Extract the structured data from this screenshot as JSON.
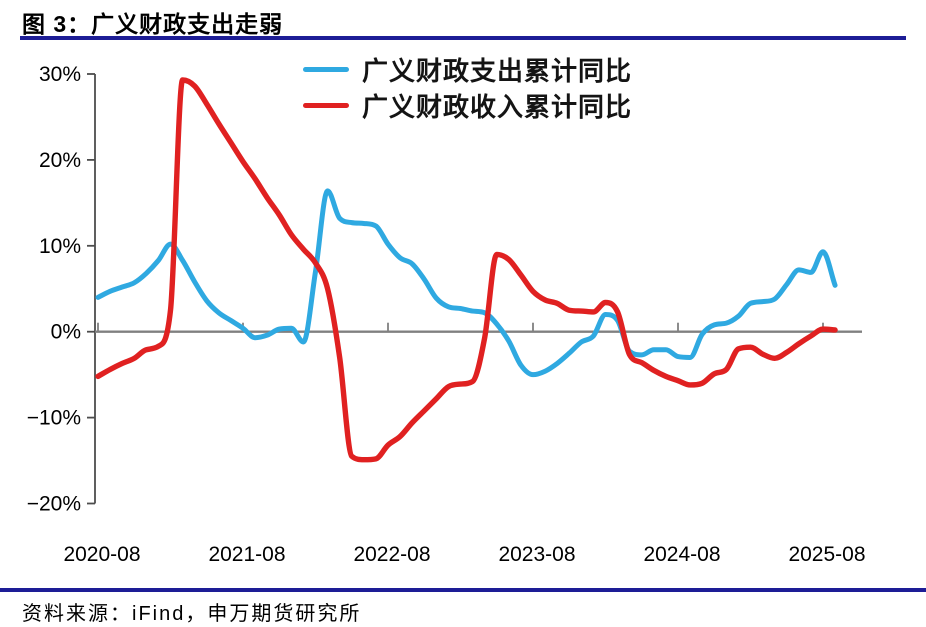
{
  "header": {
    "title": "图 3：广义财政支出走弱"
  },
  "footer": {
    "source": "资料来源：iFind，申万期货研究所"
  },
  "colors": {
    "accent_rule": "#1d1d96",
    "axis": "#4d4d4d",
    "zero_line": "#808080",
    "expenditure_line": "#2FA9E1",
    "revenue_line": "#E02121",
    "tick_label": "#000000"
  },
  "chart_data": {
    "type": "line",
    "title": "图 3：广义财政支出走弱",
    "xlabel": "",
    "ylabel": "",
    "ylim": [
      -20,
      30
    ],
    "grid": "zero-line-only",
    "legend_position": "top-center",
    "y_tick_labels": [
      "30%",
      "20%",
      "10%",
      "0%",
      "−10%",
      "−20%"
    ],
    "y_tick_values": [
      30,
      20,
      10,
      0,
      -10,
      -20
    ],
    "x_tick_labels": [
      "2020-08",
      "2021-08",
      "2022-08",
      "2023-08",
      "2024-08",
      "2025-08"
    ],
    "x_tick_month_index": [
      0,
      12,
      24,
      36,
      48,
      60
    ],
    "x": [
      "2020-08",
      "2020-09",
      "2020-10",
      "2020-11",
      "2020-12",
      "2021-01",
      "2021-02",
      "2021-03",
      "2021-04",
      "2021-05",
      "2021-06",
      "2021-07",
      "2021-08",
      "2021-09",
      "2021-10",
      "2021-11",
      "2021-12",
      "2022-01",
      "2022-02",
      "2022-03",
      "2022-04",
      "2022-05",
      "2022-06",
      "2022-07",
      "2022-08",
      "2022-09",
      "2022-10",
      "2022-11",
      "2022-12",
      "2023-01",
      "2023-02",
      "2023-03",
      "2023-04",
      "2023-05",
      "2023-06",
      "2023-07",
      "2023-08",
      "2023-09",
      "2023-10",
      "2023-11",
      "2023-12",
      "2024-01",
      "2024-02",
      "2024-03",
      "2024-04",
      "2024-05",
      "2024-06",
      "2024-07",
      "2024-08",
      "2024-09",
      "2024-10",
      "2024-11",
      "2024-12",
      "2025-01",
      "2025-02",
      "2025-03",
      "2025-04",
      "2025-05",
      "2025-06",
      "2025-07",
      "2025-08",
      "2025-09"
    ],
    "series": [
      {
        "name": "广义财政支出累计同比",
        "color": "#2FA9E1",
        "values": [
          4.0,
          4.7,
          5.2,
          5.7,
          6.8,
          8.3,
          10.2,
          8.3,
          5.8,
          3.6,
          2.2,
          1.3,
          0.4,
          -0.7,
          -0.4,
          0.3,
          0.4,
          -1.2,
          7.0,
          16.4,
          13.2,
          12.7,
          12.6,
          12.3,
          10.2,
          8.6,
          7.9,
          6.1,
          3.9,
          2.9,
          2.7,
          2.4,
          2.2,
          0.9,
          -1.1,
          -3.9,
          -5.0,
          -4.6,
          -3.7,
          -2.5,
          -1.2,
          -0.5,
          2.0,
          1.3,
          -2.3,
          -2.7,
          -2.1,
          -2.1,
          -2.9,
          -3.0,
          -0.3,
          0.8,
          1.0,
          1.8,
          3.3,
          3.5,
          3.8,
          5.5,
          7.2,
          6.9,
          9.3,
          5.4
        ]
      },
      {
        "name": "广义财政收入累计同比",
        "color": "#E02121",
        "values": [
          -5.2,
          -4.4,
          -3.7,
          -3.1,
          -2.1,
          -1.7,
          2.5,
          29.3,
          28.6,
          26.5,
          24.2,
          22.0,
          19.8,
          17.8,
          15.6,
          13.6,
          11.3,
          9.6,
          8.0,
          5.0,
          -3.0,
          -14.5,
          -14.9,
          -14.8,
          -13.2,
          -12.2,
          -10.6,
          -9.2,
          -7.8,
          -6.4,
          -6.1,
          -5.8,
          -0.7,
          9.0,
          8.4,
          6.6,
          4.7,
          3.7,
          3.3,
          2.5,
          2.4,
          2.3,
          3.4,
          2.3,
          -2.7,
          -3.6,
          -4.5,
          -5.2,
          -5.7,
          -6.2,
          -6.0,
          -4.9,
          -4.4,
          -2.0,
          -1.8,
          -2.6,
          -3.1,
          -2.4,
          -1.4,
          -0.5,
          0.3,
          0.2
        ]
      }
    ]
  }
}
